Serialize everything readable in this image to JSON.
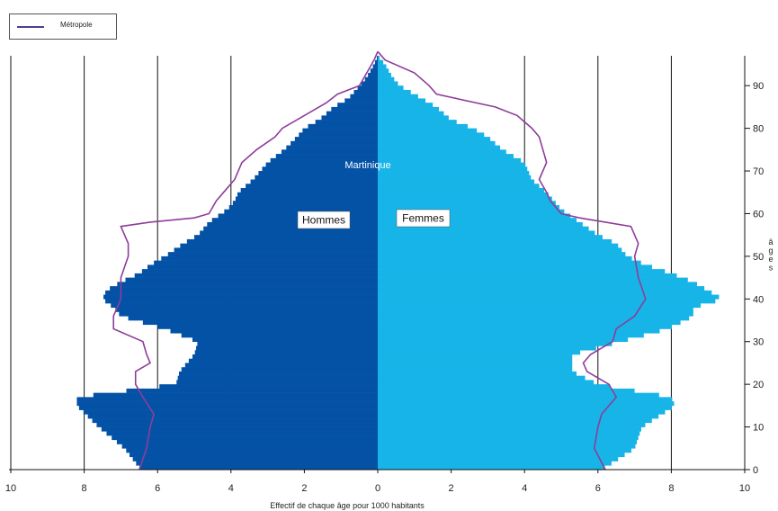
{
  "legend": {
    "metro_label": "Métropole"
  },
  "labels": {
    "men": "Hommes",
    "women": "Femmes",
    "territory": "Martinique",
    "ylabel_chars": [
      "â",
      "g",
      "e",
      "s"
    ]
  },
  "colors": {
    "men": "#0452a6",
    "women": "#17b4e8",
    "metro": "#8e3d9a",
    "legend_line": "#4a3f93"
  },
  "chart_data": {
    "type": "bar",
    "orientation": "horizontal-pyramid",
    "xlabel": "Effectif de chaque âge pour 1000 habitants",
    "ylabel": "âges",
    "xlim": [
      -10,
      10
    ],
    "x_ticks": [
      10,
      8,
      6,
      4,
      2,
      0,
      2,
      4,
      6,
      8,
      10
    ],
    "ylim": [
      0,
      97
    ],
    "y_ticks": [
      0,
      10,
      20,
      30,
      40,
      50,
      60,
      70,
      80,
      90
    ],
    "grid": "vertical",
    "legend_position": "top-left",
    "series": [
      {
        "name": "Hommes",
        "side": "left",
        "ages": [
          0,
          5,
          10,
          15,
          17,
          20,
          23,
          27,
          30,
          33,
          36,
          38,
          40,
          42,
          44,
          46,
          48,
          50,
          53,
          55,
          58,
          61,
          63,
          65,
          68,
          72,
          75,
          78,
          80,
          82,
          85,
          87,
          90,
          92,
          95,
          97
        ],
        "values": [
          6.45,
          6.9,
          7.6,
          8.2,
          8.2,
          5.5,
          5.4,
          5.0,
          4.9,
          5.8,
          7.0,
          7.2,
          7.5,
          7.4,
          7.0,
          6.5,
          6.2,
          5.8,
          5.3,
          4.9,
          4.6,
          4.1,
          3.9,
          3.8,
          3.4,
          3.0,
          2.55,
          2.2,
          2.0,
          1.6,
          1.2,
          0.8,
          0.5,
          0.3,
          0.1,
          0.0
        ]
      },
      {
        "name": "Femmes",
        "side": "right",
        "ages": [
          0,
          5,
          10,
          15,
          17,
          20,
          23,
          27,
          30,
          33,
          36,
          38,
          40,
          42,
          44,
          46,
          48,
          50,
          53,
          55,
          58,
          61,
          63,
          65,
          68,
          72,
          75,
          78,
          80,
          82,
          85,
          87,
          90,
          92,
          95,
          97
        ],
        "values": [
          6.1,
          7.0,
          7.2,
          8.1,
          8.0,
          6.0,
          5.3,
          5.3,
          6.6,
          7.9,
          8.6,
          8.6,
          9.4,
          9.0,
          8.6,
          8.0,
          7.3,
          6.8,
          6.5,
          6.0,
          5.5,
          5.0,
          4.8,
          4.6,
          4.2,
          4.0,
          3.4,
          3.0,
          2.6,
          2.0,
          1.6,
          1.2,
          0.6,
          0.4,
          0.2,
          0.0
        ]
      },
      {
        "name": "Métropole",
        "side": "left",
        "style": "line",
        "ages": [
          0,
          5,
          10,
          13,
          17,
          20,
          23,
          25,
          27,
          30,
          33,
          36,
          40,
          45,
          50,
          53,
          57,
          58,
          59,
          60,
          63,
          65,
          68,
          72,
          75,
          78,
          80,
          83,
          86,
          88,
          90,
          93,
          96,
          98
        ],
        "values": [
          6.5,
          6.3,
          6.2,
          6.1,
          6.4,
          6.6,
          6.6,
          6.2,
          6.3,
          6.4,
          7.2,
          7.2,
          7.0,
          7.0,
          6.8,
          6.8,
          7.0,
          6.2,
          5.0,
          4.6,
          4.4,
          4.2,
          3.9,
          3.7,
          3.3,
          2.8,
          2.6,
          2.0,
          1.4,
          1.1,
          0.5,
          0.3,
          0.1,
          0.0
        ]
      },
      {
        "name": "Métropole",
        "side": "right",
        "style": "line",
        "ages": [
          0,
          5,
          10,
          13,
          17,
          20,
          23,
          25,
          27,
          30,
          33,
          36,
          40,
          45,
          50,
          53,
          57,
          58,
          59,
          60,
          63,
          65,
          68,
          72,
          75,
          78,
          80,
          83,
          85,
          88,
          90,
          93,
          96,
          98
        ],
        "values": [
          6.2,
          5.9,
          6.0,
          6.1,
          6.5,
          6.3,
          5.7,
          5.6,
          5.8,
          6.4,
          6.5,
          7.0,
          7.3,
          7.1,
          7.0,
          7.1,
          6.9,
          6.2,
          5.5,
          5.0,
          4.7,
          4.6,
          4.4,
          4.6,
          4.5,
          4.4,
          4.2,
          3.8,
          3.2,
          1.6,
          1.4,
          1.0,
          0.2,
          0.0
        ]
      }
    ]
  }
}
